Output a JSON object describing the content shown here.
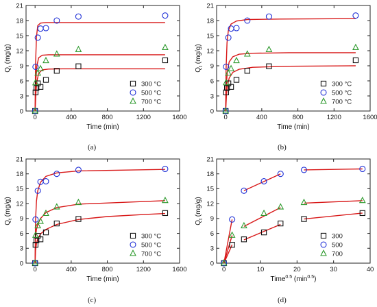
{
  "chart_data": [
    {
      "type": "scatter",
      "caption": "(a)",
      "xlabel": "Time (min)",
      "ylabel": "Q",
      "ylabel_sub": "t",
      "ylabel_unit": " (mg/g)",
      "xlim": [
        -100,
        1600
      ],
      "ylim": [
        0,
        21
      ],
      "xticks": [
        0,
        400,
        800,
        1200,
        1600
      ],
      "yticks": [
        0,
        3,
        6,
        9,
        12,
        15,
        18,
        21
      ],
      "legend_position": "bottom-right",
      "series": [
        {
          "name": "300 °C",
          "marker": "square",
          "color": "#111111",
          "x": [
            0,
            5,
            15,
            30,
            60,
            120,
            240,
            480,
            1440
          ],
          "y": [
            0,
            3.7,
            4.6,
            5.5,
            4.8,
            6.2,
            8.0,
            8.9,
            10.1
          ],
          "fit": [
            [
              0,
              0
            ],
            [
              10,
              3.8
            ],
            [
              20,
              5.9
            ],
            [
              40,
              7.5
            ],
            [
              80,
              8.2
            ],
            [
              150,
              8.35
            ],
            [
              300,
              8.4
            ],
            [
              1440,
              8.4
            ]
          ]
        },
        {
          "name": "500 °C",
          "marker": "circle",
          "color": "#1e2fd6",
          "x": [
            0,
            5,
            30,
            60,
            120,
            240,
            480,
            1440
          ],
          "y": [
            0,
            8.8,
            14.6,
            16.4,
            16.5,
            18.0,
            18.8,
            19.0
          ],
          "fit": [
            [
              0,
              0
            ],
            [
              5,
              9.0
            ],
            [
              15,
              14.8
            ],
            [
              30,
              17.0
            ],
            [
              60,
              17.5
            ],
            [
              120,
              17.6
            ],
            [
              1440,
              17.6
            ]
          ]
        },
        {
          "name": "700 °C",
          "marker": "triangle",
          "color": "#2e9a2e",
          "x": [
            0,
            5,
            30,
            60,
            120,
            240,
            480,
            1440
          ],
          "y": [
            0,
            5.6,
            7.5,
            8.4,
            10.0,
            11.3,
            12.2,
            12.6
          ],
          "fit": [
            [
              0,
              0
            ],
            [
              10,
              6.5
            ],
            [
              20,
              9.0
            ],
            [
              40,
              10.6
            ],
            [
              80,
              11.1
            ],
            [
              150,
              11.2
            ],
            [
              1440,
              11.2
            ]
          ]
        }
      ]
    },
    {
      "type": "scatter",
      "caption": "(b)",
      "xlabel": "Time (min)",
      "ylabel": "Q",
      "ylabel_sub": "t",
      "ylabel_unit": " (mg/g)",
      "xlim": [
        -100,
        1600
      ],
      "ylim": [
        0,
        21
      ],
      "xticks": [
        0,
        400,
        800,
        1200,
        1600
      ],
      "yticks": [
        0,
        3,
        6,
        9,
        12,
        15,
        18,
        21
      ],
      "legend_position": "bottom-right",
      "series": [
        {
          "name": "300 °C",
          "marker": "square",
          "color": "#111111",
          "x": [
            0,
            5,
            15,
            30,
            60,
            120,
            240,
            480,
            1440
          ],
          "y": [
            0,
            3.7,
            4.6,
            5.5,
            4.8,
            6.2,
            8.0,
            8.9,
            10.1
          ],
          "fit": [
            [
              0,
              0
            ],
            [
              10,
              3.3
            ],
            [
              20,
              5.0
            ],
            [
              40,
              6.6
            ],
            [
              80,
              7.7
            ],
            [
              150,
              8.3
            ],
            [
              300,
              8.7
            ],
            [
              700,
              8.9
            ],
            [
              1440,
              9.0
            ]
          ]
        },
        {
          "name": "500 °C",
          "marker": "circle",
          "color": "#1e2fd6",
          "x": [
            0,
            5,
            30,
            60,
            120,
            240,
            480,
            1440
          ],
          "y": [
            0,
            8.8,
            14.6,
            16.4,
            16.5,
            18.0,
            18.8,
            19.0
          ],
          "fit": [
            [
              0,
              0
            ],
            [
              5,
              8.2
            ],
            [
              15,
              13.6
            ],
            [
              30,
              16.0
            ],
            [
              60,
              17.3
            ],
            [
              120,
              17.9
            ],
            [
              240,
              18.2
            ],
            [
              600,
              18.3
            ],
            [
              1440,
              18.4
            ]
          ]
        },
        {
          "name": "700 °C",
          "marker": "triangle",
          "color": "#2e9a2e",
          "x": [
            0,
            5,
            30,
            60,
            120,
            240,
            480,
            1440
          ],
          "y": [
            0,
            5.6,
            7.5,
            8.4,
            10.0,
            11.3,
            12.2,
            12.6
          ],
          "fit": [
            [
              0,
              0
            ],
            [
              10,
              5.8
            ],
            [
              20,
              8.0
            ],
            [
              40,
              9.8
            ],
            [
              80,
              10.8
            ],
            [
              150,
              11.3
            ],
            [
              300,
              11.5
            ],
            [
              700,
              11.6
            ],
            [
              1440,
              11.6
            ]
          ]
        }
      ]
    },
    {
      "type": "scatter",
      "caption": "(c)",
      "xlabel": "Time (min)",
      "ylabel": "Q",
      "ylabel_sub": "t",
      "ylabel_unit": " (mg/g)",
      "xlim": [
        -100,
        1600
      ],
      "ylim": [
        0,
        21
      ],
      "xticks": [
        0,
        400,
        800,
        1200,
        1600
      ],
      "yticks": [
        0,
        3,
        6,
        9,
        12,
        15,
        18,
        21
      ],
      "legend_position": "bottom-right",
      "series": [
        {
          "name": "300 °C",
          "marker": "square",
          "color": "#111111",
          "x": [
            0,
            5,
            15,
            30,
            60,
            120,
            240,
            480,
            1440
          ],
          "y": [
            0,
            3.7,
            4.6,
            5.5,
            4.8,
            6.2,
            8.0,
            8.9,
            10.1
          ],
          "fit": [
            [
              0,
              0
            ],
            [
              5,
              2.5
            ],
            [
              15,
              3.9
            ],
            [
              30,
              4.9
            ],
            [
              60,
              5.9
            ],
            [
              120,
              6.8
            ],
            [
              240,
              7.8
            ],
            [
              480,
              8.8
            ],
            [
              800,
              9.4
            ],
            [
              1200,
              9.8
            ],
            [
              1440,
              10.0
            ]
          ]
        },
        {
          "name": "500 °C",
          "marker": "circle",
          "color": "#1e2fd6",
          "x": [
            0,
            5,
            30,
            60,
            120,
            240,
            480,
            1440
          ],
          "y": [
            0,
            8.8,
            14.6,
            16.4,
            16.5,
            18.0,
            18.8,
            19.0
          ],
          "fit": [
            [
              0,
              0
            ],
            [
              5,
              8.5
            ],
            [
              15,
              12.5
            ],
            [
              30,
              14.6
            ],
            [
              60,
              16.3
            ],
            [
              120,
              17.5
            ],
            [
              240,
              18.2
            ],
            [
              480,
              18.6
            ],
            [
              1440,
              18.9
            ]
          ]
        },
        {
          "name": "700 °C",
          "marker": "triangle",
          "color": "#2e9a2e",
          "x": [
            0,
            5,
            30,
            60,
            120,
            240,
            480,
            1440
          ],
          "y": [
            0,
            5.6,
            7.5,
            8.4,
            10.0,
            11.3,
            12.2,
            12.6
          ],
          "fit": [
            [
              0,
              0
            ],
            [
              5,
              5.2
            ],
            [
              15,
              6.8
            ],
            [
              30,
              7.8
            ],
            [
              60,
              9.0
            ],
            [
              120,
              10.2
            ],
            [
              240,
              11.2
            ],
            [
              480,
              11.9
            ],
            [
              1440,
              12.6
            ]
          ]
        }
      ]
    },
    {
      "type": "scatter",
      "caption": "(d)",
      "xlabel": "Time",
      "xlabel_sup": "0.5",
      "xlabel_unit": " (min",
      "xlabel_unit_sup": "0.5",
      "xlabel_close": ")",
      "ylabel": "Q",
      "ylabel_sub": "t",
      "ylabel_unit": " (mg/g)",
      "xlim": [
        -2,
        40
      ],
      "ylim": [
        0,
        21
      ],
      "xticks": [
        0,
        10,
        20,
        30,
        40
      ],
      "yticks": [
        0,
        3,
        6,
        9,
        12,
        15,
        18,
        21
      ],
      "legend_position": "bottom-right",
      "series": [
        {
          "name": "300",
          "marker": "square",
          "color": "#111111",
          "x": [
            0,
            2.24,
            5.48,
            10.95,
            15.49,
            21.9,
            37.9
          ],
          "y": [
            0,
            3.7,
            4.8,
            6.2,
            8.0,
            8.9,
            10.1
          ],
          "fits": [
            [
              [
                0,
                0
              ],
              [
                2.24,
                3.7
              ]
            ],
            [
              [
                5.48,
                4.7
              ],
              [
                15.49,
                7.8
              ]
            ],
            [
              [
                21.9,
                8.9
              ],
              [
                37.9,
                10.1
              ]
            ]
          ]
        },
        {
          "name": "500",
          "marker": "circle",
          "color": "#1e2fd6",
          "x": [
            0,
            2.24,
            5.48,
            10.95,
            15.49,
            21.9,
            37.9
          ],
          "y": [
            0,
            8.8,
            14.6,
            16.5,
            18.0,
            18.8,
            19.0
          ],
          "fits": [
            [
              [
                0,
                0
              ],
              [
                2.24,
                8.8
              ]
            ],
            [
              [
                5.48,
                14.6
              ],
              [
                15.49,
                18.0
              ]
            ],
            [
              [
                21.9,
                18.8
              ],
              [
                37.9,
                19.0
              ]
            ]
          ]
        },
        {
          "name": "700",
          "marker": "triangle",
          "color": "#2e9a2e",
          "x": [
            0,
            2.24,
            5.48,
            10.95,
            15.49,
            21.9,
            37.9
          ],
          "y": [
            0,
            5.6,
            7.5,
            10.0,
            11.3,
            12.2,
            12.6
          ],
          "fits": [
            [
              [
                0,
                0
              ],
              [
                2.24,
                5.6
              ]
            ],
            [
              [
                5.48,
                7.4
              ],
              [
                15.49,
                11.2
              ]
            ],
            [
              [
                21.9,
                12.1
              ],
              [
                37.9,
                12.6
              ]
            ]
          ]
        }
      ]
    }
  ]
}
